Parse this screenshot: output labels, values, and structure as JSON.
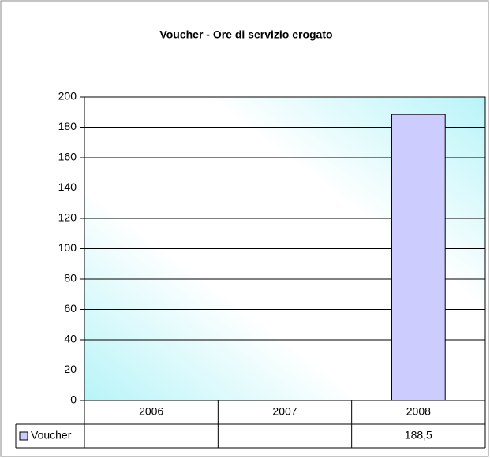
{
  "chart_data": {
    "type": "bar",
    "title": "Voucher - Ore di servizio erogato",
    "categories": [
      "2006",
      "2007",
      "2008"
    ],
    "series": [
      {
        "name": "Voucher",
        "color": "#ccccff",
        "values": [
          null,
          null,
          188.5
        ],
        "value_labels": [
          null,
          null,
          "188,5"
        ]
      }
    ],
    "ylim": [
      0,
      200
    ],
    "yticks": [
      0,
      20,
      40,
      60,
      80,
      100,
      120,
      140,
      160,
      180,
      200
    ],
    "grid": true
  }
}
